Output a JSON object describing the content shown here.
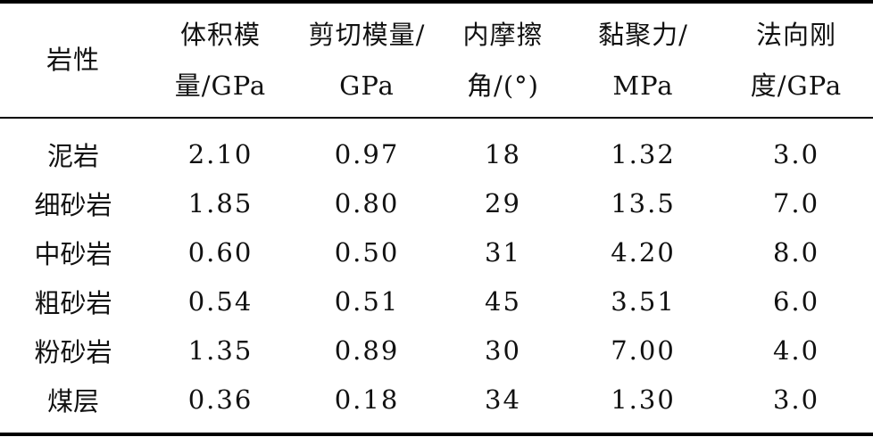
{
  "table": {
    "headers": [
      [
        "岩性"
      ],
      [
        "体积模",
        "量/GPa"
      ],
      [
        "剪切模量/",
        "GPa"
      ],
      [
        "内摩擦",
        "角/(°)"
      ],
      [
        "黏聚力/",
        "MPa"
      ],
      [
        "法向刚",
        "度/GPa"
      ]
    ],
    "rows": [
      [
        "泥岩",
        "2.10",
        "0.97",
        "18",
        "1.32",
        "3.0"
      ],
      [
        "细砂岩",
        "1.85",
        "0.80",
        "29",
        "13.5",
        "7.0"
      ],
      [
        "中砂岩",
        "0.60",
        "0.50",
        "31",
        "4.20",
        "8.0"
      ],
      [
        "粗砂岩",
        "0.54",
        "0.51",
        "45",
        "3.51",
        "6.0"
      ],
      [
        "粉砂岩",
        "1.35",
        "0.89",
        "30",
        "7.00",
        "4.0"
      ],
      [
        "煤层",
        "0.36",
        "0.18",
        "34",
        "1.30",
        "3.0"
      ]
    ]
  }
}
